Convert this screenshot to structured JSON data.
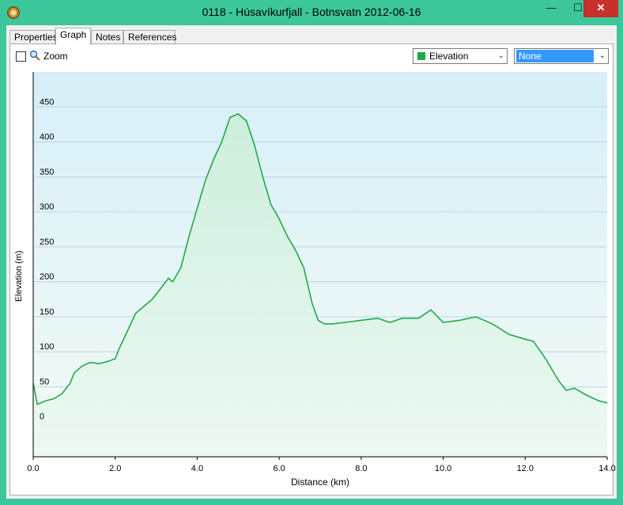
{
  "window": {
    "title": "0118 - Húsavíkurfjall - Botnsvatn 2012-06-16",
    "min_label": "—",
    "max_label": "☐",
    "close_label": "✕"
  },
  "tabs": [
    {
      "label": "Properties"
    },
    {
      "label": "Graph"
    },
    {
      "label": "Notes"
    },
    {
      "label": "References"
    }
  ],
  "toolbar": {
    "zoom_label": "Zoom",
    "series_select": "Elevation",
    "compare_select": "None",
    "series_color": "#22a84a"
  },
  "chart_data": {
    "type": "area",
    "title": "",
    "xlabel": "Distance  (km)",
    "ylabel": "Elevation (m)",
    "xlim": [
      0,
      14
    ],
    "ylim": [
      -50,
      500
    ],
    "x_ticks": [
      0,
      2,
      4,
      6,
      8,
      10,
      12,
      14
    ],
    "x_tick_labels": [
      "0.0",
      "2.0",
      "4.0",
      "6.0",
      "8.0",
      "10.0",
      "12.0",
      "14.0"
    ],
    "y_ticks": [
      0,
      50,
      100,
      150,
      200,
      250,
      300,
      350,
      400,
      450
    ],
    "y_tick_labels": [
      "0",
      "50",
      "100",
      "150",
      "200",
      "250",
      "300",
      "350",
      "400",
      "450"
    ],
    "grid": true,
    "line_color": "#22a84a",
    "series": [
      {
        "x": [
          0,
          0.1,
          0.3,
          0.5,
          0.7,
          0.9,
          1.0,
          1.2,
          1.4,
          1.6,
          1.8,
          2.0,
          2.1,
          2.3,
          2.5,
          2.7,
          2.9,
          3.1,
          3.3,
          3.4,
          3.6,
          3.8,
          4.0,
          4.2,
          4.4,
          4.6,
          4.8,
          5.0,
          5.2,
          5.4,
          5.6,
          5.8,
          6.0,
          6.2,
          6.4,
          6.6,
          6.8,
          6.95,
          7.1,
          7.3,
          7.6,
          8.0,
          8.4,
          8.7,
          9.0,
          9.4,
          9.7,
          10.0,
          10.4,
          10.8,
          11.2,
          11.6,
          12.0,
          12.2,
          12.5,
          12.8,
          13.0,
          13.2,
          13.5,
          13.8,
          14.0
        ],
        "y": [
          55,
          25,
          30,
          33,
          40,
          55,
          70,
          80,
          85,
          83,
          86,
          90,
          105,
          130,
          155,
          165,
          175,
          190,
          205,
          200,
          220,
          265,
          305,
          345,
          375,
          400,
          435,
          440,
          430,
          395,
          350,
          310,
          290,
          265,
          245,
          220,
          170,
          145,
          140,
          140,
          142,
          145,
          148,
          142,
          148,
          148,
          160,
          142,
          145,
          150,
          140,
          125,
          118,
          115,
          90,
          60,
          45,
          48,
          38,
          30,
          27
        ]
      }
    ]
  }
}
